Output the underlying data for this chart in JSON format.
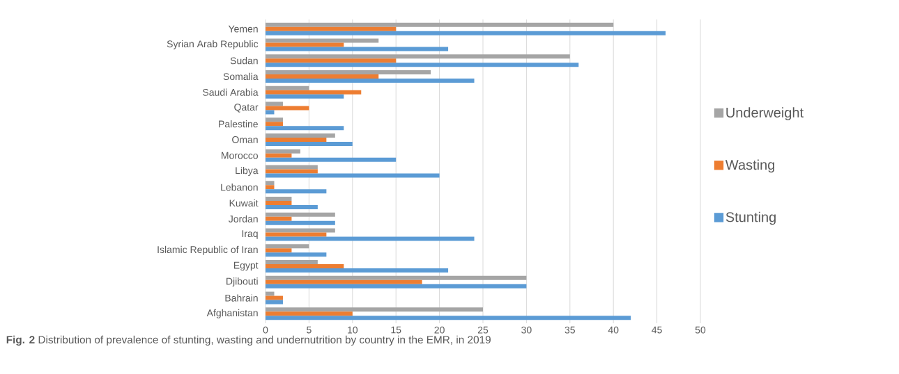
{
  "chart_data": {
    "type": "bar",
    "orientation": "horizontal",
    "categories": [
      "Yemen",
      "Syrian Arab Republic",
      "Sudan",
      "Somalia",
      "Saudi Arabia",
      "Qatar",
      "Palestine",
      "Oman",
      "Morocco",
      "Libya",
      "Lebanon",
      "Kuwait",
      "Jordan",
      "Iraq",
      "Islamic Republic of Iran",
      "Egypt",
      "Djibouti",
      "Bahrain",
      "Afghanistan"
    ],
    "series": [
      {
        "name": "Underweight",
        "color": "#a5a5a5",
        "values": [
          40,
          13,
          35,
          19,
          5,
          2,
          2,
          8,
          4,
          6,
          1,
          3,
          8,
          8,
          5,
          6,
          30,
          1,
          25
        ]
      },
      {
        "name": "Wasting",
        "color": "#ed7d31",
        "values": [
          15,
          9,
          15,
          13,
          11,
          5,
          2,
          7,
          3,
          6,
          1,
          3,
          3,
          7,
          3,
          9,
          18,
          2,
          10
        ]
      },
      {
        "name": "Stunting",
        "color": "#5b9bd5",
        "values": [
          46,
          21,
          36,
          24,
          9,
          1,
          9,
          10,
          15,
          20,
          7,
          6,
          8,
          24,
          7,
          21,
          30,
          2,
          42
        ]
      }
    ],
    "xlim": [
      0,
      50
    ],
    "xticks": [
      0,
      5,
      10,
      15,
      20,
      25,
      30,
      35,
      40,
      45,
      50
    ],
    "grid": "x",
    "legend": "right",
    "annotations": [
      "**Fig. 2** Distribution of prevalence of stunting, wasting and undernutrition by country in the EMR, in 2019"
    ]
  }
}
